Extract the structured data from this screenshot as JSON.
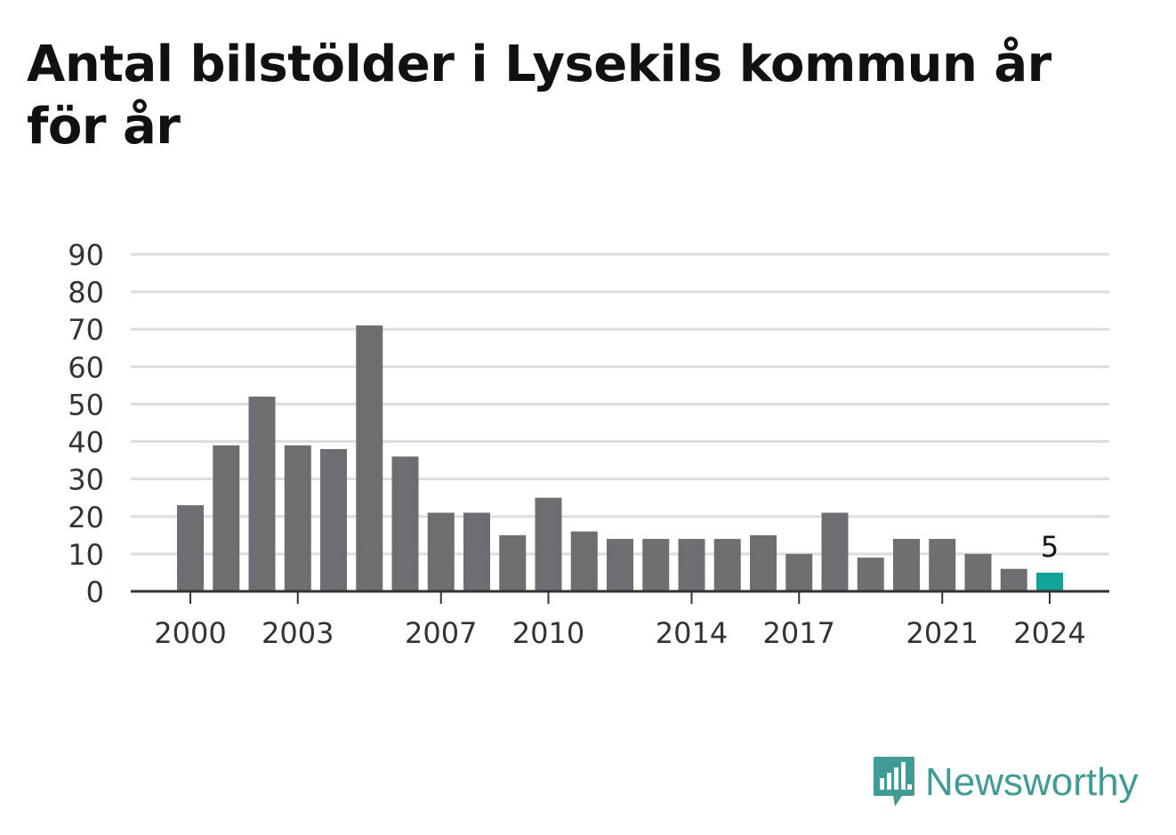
{
  "title": "Antal bilstölder i Lysekils kommun år för år",
  "brand": {
    "name": "Newsworthy",
    "icon": "newsworthy-logo-icon",
    "color": "#3f9b93"
  },
  "colors": {
    "bar": "#6e6d72",
    "highlight": "#0fa39a",
    "grid": "#dddddd",
    "axis": "#333333"
  },
  "chart_data": {
    "type": "bar",
    "title": "Antal bilstölder i Lysekils kommun år för år",
    "xlabel": "",
    "ylabel": "",
    "categories": [
      2000,
      2001,
      2002,
      2003,
      2004,
      2005,
      2006,
      2007,
      2008,
      2009,
      2010,
      2011,
      2012,
      2013,
      2014,
      2015,
      2016,
      2017,
      2018,
      2019,
      2020,
      2021,
      2022,
      2023,
      2024
    ],
    "values": [
      23,
      39,
      52,
      39,
      38,
      71,
      36,
      21,
      21,
      15,
      25,
      16,
      14,
      14,
      14,
      14,
      15,
      10,
      21,
      9,
      14,
      14,
      10,
      6,
      5
    ],
    "x_tick_labels": [
      "2000",
      "2003",
      "2007",
      "2010",
      "2014",
      "2017",
      "2021",
      "2024"
    ],
    "y_ticks": [
      0,
      10,
      20,
      30,
      40,
      50,
      60,
      70,
      80,
      90
    ],
    "ylim": [
      0,
      90
    ],
    "grid": true,
    "highlight": {
      "category": 2024,
      "value": 5,
      "label": "5"
    }
  }
}
